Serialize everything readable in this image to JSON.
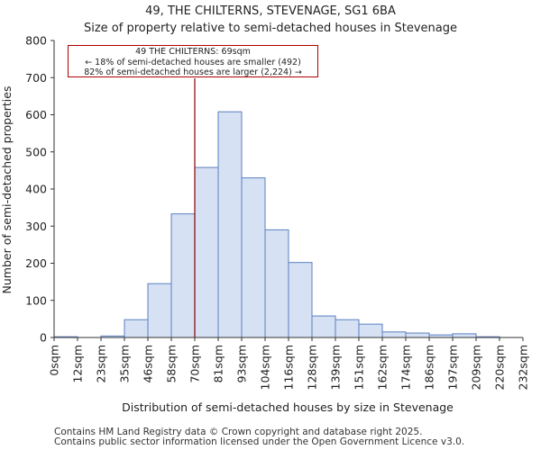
{
  "header": {
    "title": "49, THE CHILTERNS, STEVENAGE, SG1 6BA",
    "subtitle": "Size of property relative to semi-detached houses in Stevenage"
  },
  "annotation": {
    "line1": "49 THE CHILTERNS: 69sqm",
    "line2": "← 18% of semi-detached houses are smaller (492)",
    "line3": "82% of semi-detached houses are larger (2,224) →"
  },
  "footer": {
    "line1": "Contains HM Land Registry data © Crown copyright and database right 2025.",
    "line2": "Contains public sector information licensed under the Open Government Licence v3.0."
  },
  "colors": {
    "bar_fill": "#d6e1f4",
    "bar_stroke": "#5b7fbf",
    "marker": "#8b0000",
    "axis": "#333333"
  },
  "chart_data": {
    "type": "bar",
    "title": "49, THE CHILTERNS, STEVENAGE, SG1 6BA",
    "subtitle": "Size of property relative to semi-detached houses in Stevenage",
    "xlabel": "Distribution of semi-detached houses by size in Stevenage",
    "ylabel": "Number of semi-detached properties",
    "x_tick_labels": [
      "0sqm",
      "12sqm",
      "23sqm",
      "35sqm",
      "46sqm",
      "58sqm",
      "70sqm",
      "81sqm",
      "93sqm",
      "104sqm",
      "116sqm",
      "128sqm",
      "139sqm",
      "151sqm",
      "162sqm",
      "174sqm",
      "186sqm",
      "197sqm",
      "209sqm",
      "220sqm",
      "232sqm"
    ],
    "values": [
      2,
      0,
      4,
      48,
      145,
      333,
      458,
      608,
      430,
      290,
      202,
      58,
      48,
      36,
      15,
      12,
      7,
      10,
      2,
      0
    ],
    "ylim": [
      0,
      800
    ],
    "y_ticks": [
      0,
      100,
      200,
      300,
      400,
      500,
      600,
      700,
      800
    ],
    "marker_bin_position": 6.0,
    "marker_label": "69sqm"
  }
}
